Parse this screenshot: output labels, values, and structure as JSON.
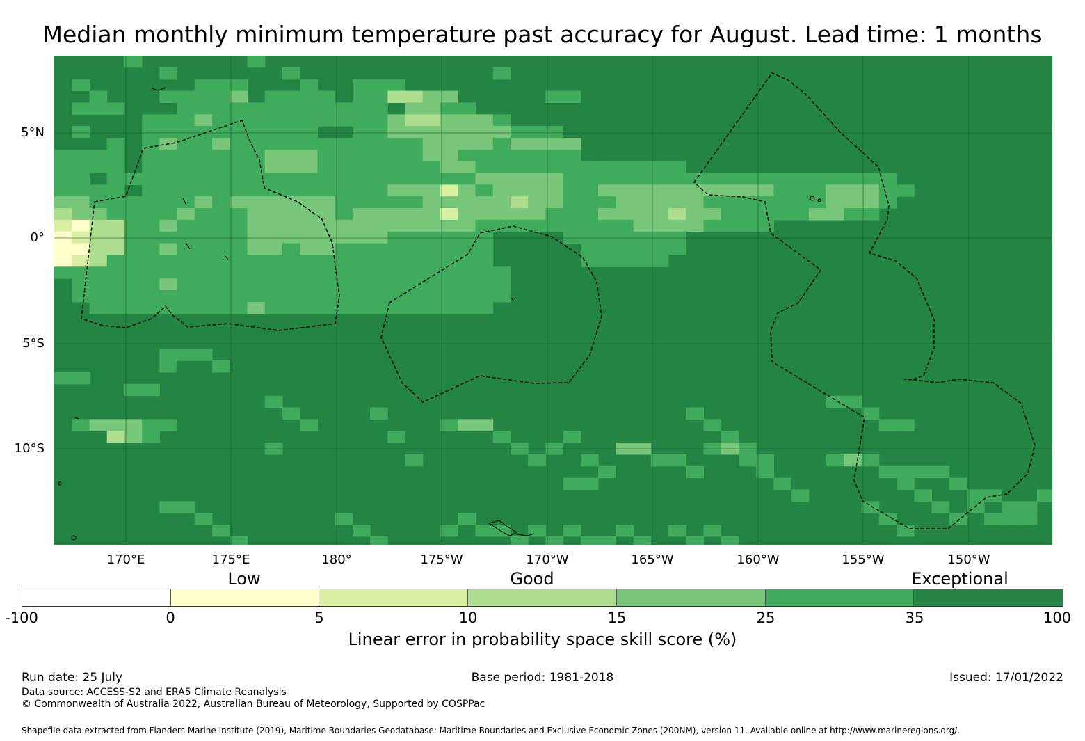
{
  "title": "Median monthly minimum temperature past accuracy for August. Lead time: 1 months",
  "map": {
    "lat_labels": [
      "5°N",
      "0°",
      "5°S",
      "10°S"
    ],
    "lon_labels": [
      "170°E",
      "175°E",
      "180°",
      "175°W",
      "170°W",
      "165°W",
      "160°W",
      "155°W",
      "150°W"
    ],
    "colors": {
      "background": "#238443",
      "c35_25": "#41ab5d",
      "c25_15": "#78c679",
      "c15_10": "#addd8e",
      "c10_5": "#d9f0a3",
      "c5_0": "#ffffcc"
    }
  },
  "legend": {
    "categories": [
      "Low",
      "Good",
      "Exceptional"
    ],
    "ticks": [
      "-100",
      "0",
      "5",
      "10",
      "15",
      "25",
      "35",
      "100"
    ],
    "segment_colors": [
      "#ffffff",
      "#ffffcc",
      "#d9f0a3",
      "#addd8e",
      "#78c679",
      "#41ab5d",
      "#238443"
    ],
    "title": "Linear error in probability space skill score (%)"
  },
  "footer": {
    "run_date": "Run date: 25 July",
    "base_period": "Base period: 1981-2018",
    "issued": "Issued: 17/01/2022",
    "data_source": "Data source: ACCESS-S2 and ERA5 Climate Reanalysis",
    "copyright": "© Commonwealth of Australia 2022, Australian Bureau of Meteorology, Supported by COSPPac",
    "shapefile": "Shapefile data extracted from Flanders Marine Institute (2019), Maritime Boundaries Geodatabase: Maritime Boundaries and Exclusive Economic Zones (200NM), version 11. Available online at http://www.marineregions.org/."
  }
}
